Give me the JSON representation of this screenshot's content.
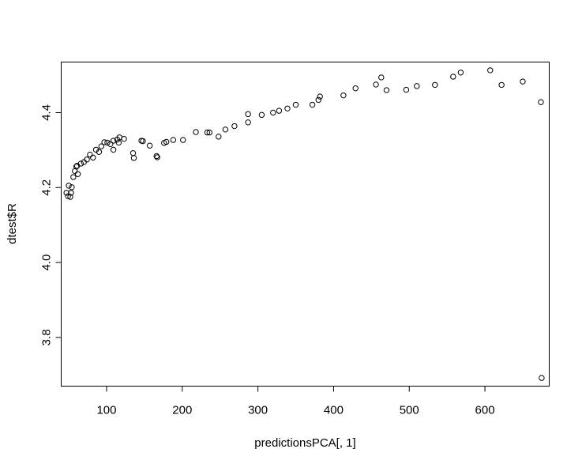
{
  "chart_data": {
    "type": "scatter",
    "title": "",
    "xlabel": "predictionsPCA[, 1]",
    "ylabel": "dtest$R",
    "xlim": [
      40,
      685
    ],
    "ylim": [
      3.67,
      4.535
    ],
    "xticks": [
      "100",
      "200",
      "300",
      "400",
      "500",
      "600"
    ],
    "yticks": [
      "3.8",
      "4.0",
      "4.2",
      "4.4"
    ],
    "grid": false,
    "legend": "none",
    "marker": "open-circle",
    "series": [
      {
        "points": [
          [
            47,
            4.186
          ],
          [
            49,
            4.177
          ],
          [
            50,
            4.205
          ],
          [
            52,
            4.175
          ],
          [
            53,
            4.186
          ],
          [
            54,
            4.201
          ],
          [
            56,
            4.228
          ],
          [
            58,
            4.244
          ],
          [
            60,
            4.256
          ],
          [
            61,
            4.258
          ],
          [
            62,
            4.236
          ],
          [
            66,
            4.264
          ],
          [
            70,
            4.268
          ],
          [
            74,
            4.275
          ],
          [
            78,
            4.288
          ],
          [
            82,
            4.28
          ],
          [
            86,
            4.301
          ],
          [
            90,
            4.295
          ],
          [
            93,
            4.31
          ],
          [
            97,
            4.321
          ],
          [
            101,
            4.32
          ],
          [
            105,
            4.316
          ],
          [
            109,
            4.301
          ],
          [
            109,
            4.325
          ],
          [
            114,
            4.328
          ],
          [
            116,
            4.32
          ],
          [
            117,
            4.334
          ],
          [
            123,
            4.33
          ],
          [
            135,
            4.292
          ],
          [
            136,
            4.279
          ],
          [
            146,
            4.325
          ],
          [
            148,
            4.324
          ],
          [
            157,
            4.312
          ],
          [
            166,
            4.284
          ],
          [
            167,
            4.281
          ],
          [
            176,
            4.319
          ],
          [
            179,
            4.322
          ],
          [
            188,
            4.327
          ],
          [
            201,
            4.327
          ],
          [
            218,
            4.348
          ],
          [
            233,
            4.347
          ],
          [
            236,
            4.347
          ],
          [
            248,
            4.336
          ],
          [
            257,
            4.355
          ],
          [
            269,
            4.364
          ],
          [
            287,
            4.374
          ],
          [
            287,
            4.396
          ],
          [
            305,
            4.394
          ],
          [
            320,
            4.4
          ],
          [
            328,
            4.405
          ],
          [
            339,
            4.411
          ],
          [
            350,
            4.421
          ],
          [
            372,
            4.421
          ],
          [
            380,
            4.434
          ],
          [
            382,
            4.443
          ],
          [
            413,
            4.446
          ],
          [
            429,
            4.465
          ],
          [
            456,
            4.475
          ],
          [
            463,
            4.494
          ],
          [
            470,
            4.46
          ],
          [
            496,
            4.461
          ],
          [
            510,
            4.471
          ],
          [
            534,
            4.474
          ],
          [
            558,
            4.496
          ],
          [
            568,
            4.507
          ],
          [
            607,
            4.513
          ],
          [
            622,
            4.474
          ],
          [
            650,
            4.483
          ],
          [
            674,
            4.428
          ],
          [
            675,
            3.692
          ]
        ]
      }
    ]
  }
}
